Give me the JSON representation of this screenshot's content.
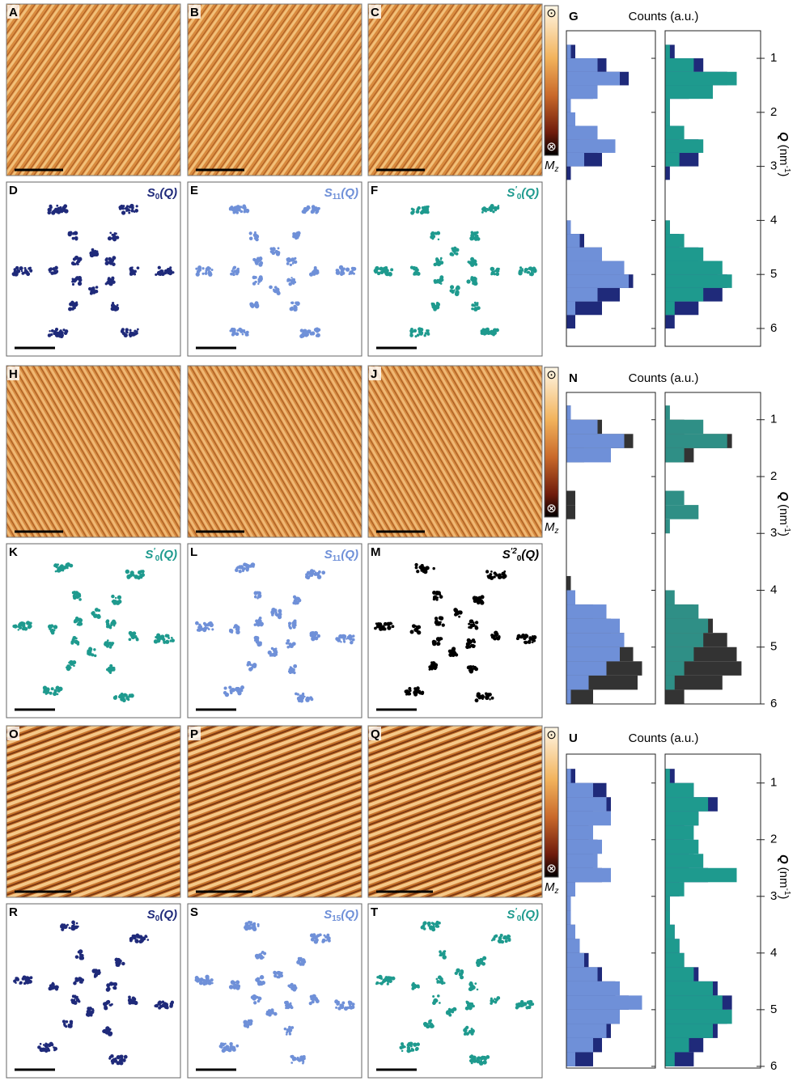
{
  "groups": [
    {
      "image_letters": [
        "A",
        "B",
        "C"
      ],
      "fourier_panels": [
        {
          "letter": "D",
          "symbol": "S",
          "sub": "0",
          "arg": "(Q)",
          "color": "#1f2a7a"
        },
        {
          "letter": "E",
          "symbol": "S",
          "sub": "11",
          "arg": "(Q)",
          "color": "#6f90d8"
        },
        {
          "letter": "F",
          "symbol": "S",
          "sup": "′",
          "sub": "0",
          "arg": "(Q)",
          "color": "#1e9a8e"
        }
      ],
      "colorbar": {
        "top_symbol": "⊙",
        "bottom_symbol": "⊗",
        "label": "M",
        "label_sub": "z"
      },
      "histogram": {
        "letter": "G",
        "title": "Counts (a.u.)",
        "axis_label": "Q",
        "axis_unit": "(nm",
        "axis_unit_exp": "-1",
        "axis_unit_close": ")",
        "ylim": [
          0.49,
          6.33
        ],
        "yticks": [
          1,
          2,
          3,
          4,
          5,
          6
        ],
        "xlim": [
          0,
          1
        ],
        "bins": [
          0.5,
          0.75,
          1,
          1.25,
          1.5,
          1.75,
          2,
          2.25,
          2.5,
          2.75,
          3,
          3.25,
          3.5,
          3.75,
          4,
          4.25,
          4.5,
          4.75,
          5,
          5.25,
          5.5,
          5.75,
          6,
          6.25
        ],
        "panes": [
          {
            "series": [
              {
                "color": "#1f2a7a",
                "values": [
                  0,
                  0.1,
                  0.45,
                  0.7,
                  0.3,
                  0.05,
                  0.05,
                  0.15,
                  0.35,
                  0.4,
                  0.05,
                  0,
                  0,
                  0,
                  0.05,
                  0.2,
                  0.4,
                  0.6,
                  0.75,
                  0.6,
                  0.4,
                  0.1,
                  0
                ]
              },
              {
                "color": "#6f90d8",
                "values": [
                  0,
                  0.05,
                  0.35,
                  0.6,
                  0.35,
                  0.05,
                  0.1,
                  0.35,
                  0.55,
                  0.2,
                  0,
                  0,
                  0,
                  0,
                  0.05,
                  0.15,
                  0.4,
                  0.65,
                  0.7,
                  0.35,
                  0.1,
                  0,
                  0
                ]
              }
            ]
          },
          {
            "series": [
              {
                "color": "#1f2a7a",
                "values": [
                  0,
                  0.1,
                  0.4,
                  0.65,
                  0.25,
                  0.05,
                  0.05,
                  0.15,
                  0.35,
                  0.35,
                  0.05,
                  0,
                  0,
                  0,
                  0.05,
                  0.15,
                  0.35,
                  0.55,
                  0.65,
                  0.6,
                  0.35,
                  0.1,
                  0
                ]
              },
              {
                "color": "#1e9a8e",
                "values": [
                  0,
                  0.05,
                  0.3,
                  0.75,
                  0.5,
                  0.05,
                  0.05,
                  0.2,
                  0.4,
                  0.15,
                  0,
                  0,
                  0,
                  0,
                  0.05,
                  0.2,
                  0.4,
                  0.6,
                  0.7,
                  0.4,
                  0.1,
                  0,
                  0
                ]
              }
            ]
          }
        ]
      }
    },
    {
      "image_letters": [
        "H",
        null,
        "J"
      ],
      "fourier_panels": [
        {
          "letter": "K",
          "symbol": "S",
          "sup": "′",
          "sub": "0",
          "arg": "(Q)",
          "color": "#1e9a8e"
        },
        {
          "letter": "L",
          "symbol": "S",
          "sub": "11",
          "arg": "(Q)",
          "color": "#6f90d8"
        },
        {
          "letter": "M",
          "symbol": "S",
          "sup": "′2",
          "sub": "0",
          "arg": "(Q)",
          "color": "#000000"
        }
      ],
      "colorbar": {
        "top_symbol": "⊙",
        "bottom_symbol": "⊗",
        "label": "M",
        "label_sub": "z"
      },
      "histogram": {
        "letter": "N",
        "title": "Counts (a.u.)",
        "axis_label": "Q",
        "axis_unit": "(nm",
        "axis_unit_exp": "-1",
        "axis_unit_close": ")",
        "ylim": [
          0.52,
          6.0
        ],
        "yticks": [
          1,
          2,
          3,
          4,
          5,
          6
        ],
        "xlim": [
          0,
          1
        ],
        "bins": [
          0.5,
          0.75,
          1,
          1.25,
          1.5,
          1.75,
          2,
          2.25,
          2.5,
          2.75,
          3,
          3.25,
          3.5,
          3.75,
          4,
          4.25,
          4.5,
          4.75,
          5,
          5.25,
          5.5,
          5.75,
          6
        ],
        "panes": [
          {
            "series": [
              {
                "color": "#333333",
                "values": [
                  0,
                  0.05,
                  0.4,
                  0.75,
                  0.2,
                  0,
                  0,
                  0.1,
                  0.1,
                  0,
                  0,
                  0,
                  0,
                  0.05,
                  0.1,
                  0.3,
                  0.5,
                  0.65,
                  0.75,
                  0.85,
                  0.8,
                  0.3
                ]
              },
              {
                "color": "#6f90d8",
                "values": [
                  0,
                  0.05,
                  0.35,
                  0.65,
                  0.5,
                  0,
                  0,
                  0,
                  0,
                  0,
                  0,
                  0,
                  0,
                  0,
                  0.1,
                  0.45,
                  0.6,
                  0.65,
                  0.6,
                  0.45,
                  0.25,
                  0.05
                ]
              }
            ]
          },
          {
            "series": [
              {
                "color": "#333333",
                "values": [
                  0,
                  0,
                  0.2,
                  0.7,
                  0.3,
                  0,
                  0,
                  0,
                  0,
                  0,
                  0,
                  0,
                  0,
                  0,
                  0.05,
                  0.3,
                  0.5,
                  0.65,
                  0.75,
                  0.8,
                  0.6,
                  0.2
                ]
              },
              {
                "color": "#2f8f86",
                "values": [
                  0,
                  0.05,
                  0.4,
                  0.65,
                  0.2,
                  0,
                  0,
                  0.2,
                  0.35,
                  0.05,
                  0,
                  0,
                  0,
                  0,
                  0.1,
                  0.35,
                  0.45,
                  0.4,
                  0.3,
                  0.2,
                  0.1,
                  0
                ]
              }
            ]
          }
        ]
      }
    },
    {
      "image_letters": [
        "O",
        "P",
        "Q"
      ],
      "fourier_panels": [
        {
          "letter": "R",
          "symbol": "S",
          "sub": "0",
          "arg": "(Q)",
          "color": "#1f2a7a"
        },
        {
          "letter": "S",
          "symbol": "S",
          "sub": "15",
          "arg": "(Q)",
          "color": "#6f90d8"
        },
        {
          "letter": "T",
          "symbol": "S",
          "sup": "′",
          "sub": "0",
          "arg": "(Q)",
          "color": "#1e9a8e"
        }
      ],
      "colorbar": {
        "top_symbol": "⊙",
        "bottom_symbol": "⊗",
        "label": "M",
        "label_sub": "z"
      },
      "histogram": {
        "letter": "U",
        "title": "Counts (a.u.)",
        "axis_label": "Q",
        "axis_unit": "(nm",
        "axis_unit_exp": "-1",
        "axis_unit_close": ")",
        "ylim": [
          0.49,
          6.03
        ],
        "yticks": [
          1,
          2,
          3,
          4,
          5,
          6
        ],
        "xlim": [
          0,
          1
        ],
        "bins": [
          0.5,
          0.75,
          1,
          1.25,
          1.5,
          1.75,
          2,
          2.25,
          2.5,
          2.75,
          3,
          3.25,
          3.5,
          3.75,
          4,
          4.25,
          4.5,
          4.75,
          5,
          5.25,
          5.5,
          5.75,
          6
        ],
        "panes": [
          {
            "series": [
              {
                "color": "#1f2a7a",
                "values": [
                  0,
                  0.1,
                  0.45,
                  0.5,
                  0.3,
                  0.25,
                  0.35,
                  0.3,
                  0.4,
                  0.1,
                  0.05,
                  0.05,
                  0.1,
                  0.15,
                  0.25,
                  0.4,
                  0.55,
                  0.7,
                  0.6,
                  0.5,
                  0.4,
                  0.3
                ]
              },
              {
                "color": "#6f90d8",
                "values": [
                  0,
                  0.05,
                  0.3,
                  0.45,
                  0.5,
                  0.3,
                  0.4,
                  0.35,
                  0.5,
                  0.1,
                  0.05,
                  0.05,
                  0.1,
                  0.15,
                  0.2,
                  0.35,
                  0.6,
                  0.85,
                  0.6,
                  0.45,
                  0.3,
                  0.1
                ]
              }
            ]
          },
          {
            "series": [
              {
                "color": "#1f2a7a",
                "values": [
                  0,
                  0.1,
                  0.3,
                  0.55,
                  0.35,
                  0.2,
                  0.3,
                  0.25,
                  0.45,
                  0.15,
                  0.05,
                  0.05,
                  0.1,
                  0.15,
                  0.2,
                  0.35,
                  0.55,
                  0.7,
                  0.65,
                  0.55,
                  0.4,
                  0.3
                ]
              },
              {
                "color": "#1e9a8e",
                "values": [
                  0,
                  0.05,
                  0.3,
                  0.45,
                  0.35,
                  0.3,
                  0.35,
                  0.4,
                  0.75,
                  0.2,
                  0.05,
                  0.05,
                  0.1,
                  0.15,
                  0.2,
                  0.3,
                  0.5,
                  0.6,
                  0.7,
                  0.5,
                  0.25,
                  0.1
                ]
              }
            ]
          }
        ]
      }
    }
  ]
}
